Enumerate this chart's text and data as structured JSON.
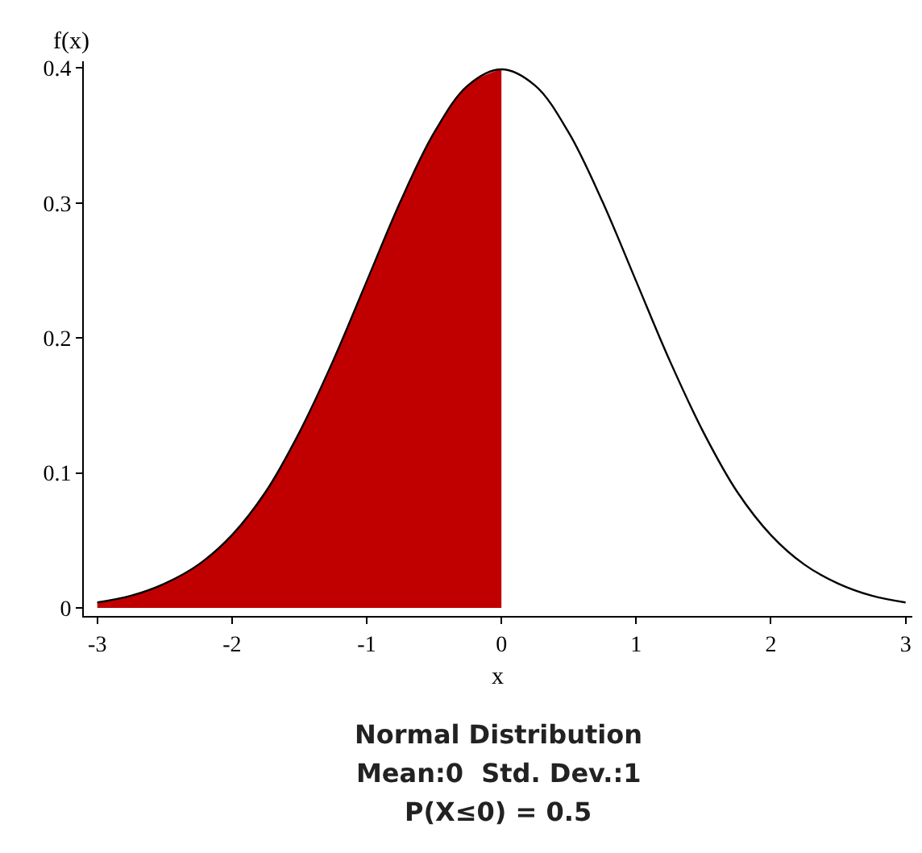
{
  "chart_data": {
    "type": "line",
    "title": "Normal Distribution",
    "subtitle": "Mean:0  Std. Dev.:1",
    "annotations": [
      "P(X≤0) = 0.5"
    ],
    "xlabel": "x",
    "ylabel": "f(x)",
    "series": [
      {
        "type": "area",
        "color": "#c00000",
        "x": [
          -3,
          -2.75,
          -2.5,
          -2.25,
          -2,
          -1.75,
          -1.5,
          -1.25,
          -1,
          -0.75,
          -0.5,
          -0.25,
          0
        ],
        "values": [
          0.004,
          0.009,
          0.018,
          0.032,
          0.054,
          0.086,
          0.13,
          0.183,
          0.242,
          0.301,
          0.352,
          0.387,
          0.399
        ]
      },
      {
        "color": "#000000",
        "x": [
          -3,
          -2.75,
          -2.5,
          -2.25,
          -2,
          -1.75,
          -1.5,
          -1.25,
          -1,
          -0.75,
          -0.5,
          -0.25,
          0,
          0.25,
          0.5,
          0.75,
          1,
          1.25,
          1.5,
          1.75,
          2,
          2.25,
          2.5,
          2.75,
          3
        ],
        "values": [
          0.004,
          0.009,
          0.018,
          0.032,
          0.054,
          0.086,
          0.13,
          0.183,
          0.242,
          0.301,
          0.352,
          0.387,
          0.399,
          0.387,
          0.352,
          0.301,
          0.242,
          0.183,
          0.13,
          0.086,
          0.054,
          0.032,
          0.018,
          0.009,
          0.004
        ]
      }
    ],
    "xlim": [
      -3.1,
      3.05
    ],
    "ylim": [
      -0.006,
      0.405
    ],
    "xticks": [
      -3,
      -2,
      -1,
      0,
      1,
      2,
      3
    ],
    "yticks": [
      0,
      0.1,
      0.2,
      0.3,
      0.4
    ],
    "marker": "none",
    "line_style": "solid"
  }
}
